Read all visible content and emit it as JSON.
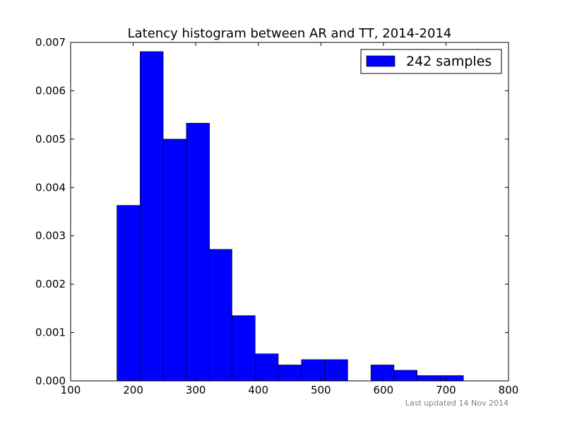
{
  "chart_data": {
    "type": "bar",
    "title": "Latency histogram between AR and TT, 2014-2014",
    "xlabel": "",
    "ylabel": "",
    "xlim": [
      100,
      800
    ],
    "ylim": [
      0,
      0.007
    ],
    "x_ticks": [
      "100",
      "200",
      "300",
      "400",
      "500",
      "600",
      "700",
      "800"
    ],
    "y_ticks": [
      "0.000",
      "0.001",
      "0.002",
      "0.003",
      "0.004",
      "0.005",
      "0.006",
      "0.007"
    ],
    "bin_edges": [
      174,
      211,
      248,
      285,
      322,
      358,
      395,
      432,
      469,
      506,
      543,
      580,
      617,
      654,
      691,
      728
    ],
    "values": [
      0.00363,
      0.00681,
      0.005,
      0.00533,
      0.00272,
      0.00135,
      0.00056,
      0.00033,
      0.00044,
      0.00044,
      0.0,
      0.00033,
      0.00022,
      0.00011,
      0.00011
    ],
    "series": [
      {
        "name": "242 samples",
        "color": "#0000ff"
      }
    ],
    "legend_position": "top-right",
    "grid": false
  },
  "footnote": "Last updated 14 Nov 2014"
}
